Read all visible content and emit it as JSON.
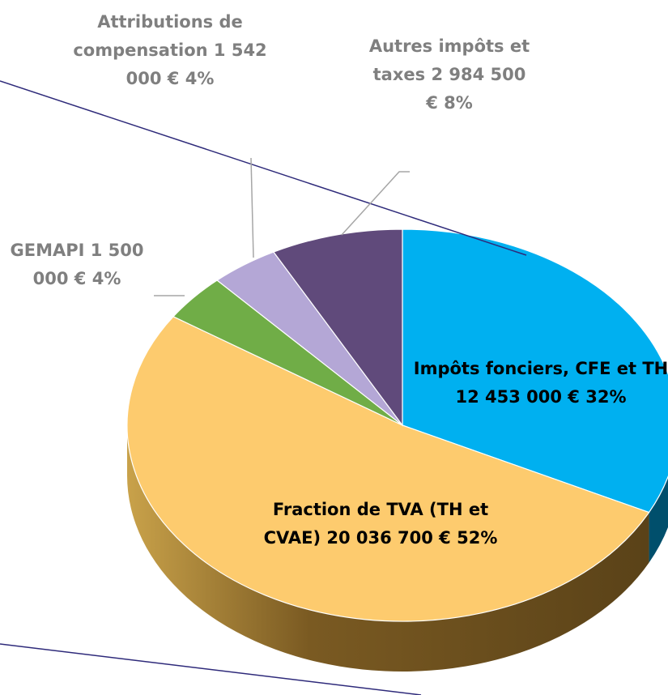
{
  "chart_data": {
    "type": "pie",
    "categories": [
      "Impôts fonciers, CFE et TH",
      "Fraction de TVA (TH et CVAE)",
      "GEMAPI",
      "Attributions de compensation",
      "Autres impôts et taxes"
    ],
    "values": [
      12453000,
      20036700,
      1500000,
      1542000,
      2984500
    ],
    "value_labels": [
      "12 453 000 €",
      "20 036 700 €",
      "1 500 000 €",
      "1 542 000 €",
      "2 984 500 €"
    ],
    "percents": [
      32,
      52,
      4,
      4,
      8
    ],
    "percent_labels": [
      "32%",
      "52%",
      "4%",
      "4%",
      "8%"
    ],
    "colors": [
      "#00b0f0",
      "#fdcb6e",
      "#70ad47",
      "#b4a7d6",
      "#604a7b"
    ]
  }
}
